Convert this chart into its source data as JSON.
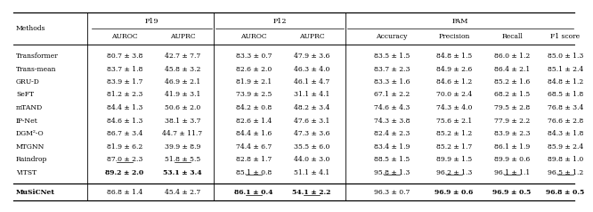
{
  "columns_sub": [
    "Methods",
    "AUROC",
    "AUPRC",
    "AUROC",
    "AUPRC",
    "Accuracy",
    "Precision",
    "Recall",
    "F1 score"
  ],
  "rows": [
    [
      "Transformer",
      "80.7 ± 3.8",
      "42.7 ± 7.7",
      "83.3 ± 0.7",
      "47.9 ± 3.6",
      "83.5 ± 1.5",
      "84.8 ± 1.5",
      "86.0 ± 1.2",
      "85.0 ± 1.3"
    ],
    [
      "Trans-mean",
      "83.7 ± 1.8",
      "45.8 ± 3.2",
      "82.6 ± 2.0",
      "46.3 ± 4.0",
      "83.7 ± 2.3",
      "84.9 ± 2.6",
      "86.4 ± 2.1",
      "85.1 ± 2.4"
    ],
    [
      "GRU-D",
      "83.9 ± 1.7",
      "46.9 ± 2.1",
      "81.9 ± 2.1",
      "46.1 ± 4.7",
      "83.3 ± 1.6",
      "84.6 ± 1.2",
      "85.2 ± 1.6",
      "84.8 ± 1.2"
    ],
    [
      "SeFT",
      "81.2 ± 2.3",
      "41.9 ± 3.1",
      "73.9 ± 2.5",
      "31.1 ± 4.1",
      "67.1 ± 2.2",
      "70.0 ± 2.4",
      "68.2 ± 1.5",
      "68.5 ± 1.8"
    ],
    [
      "mTAND",
      "84.4 ± 1.3",
      "50.6 ± 2.0",
      "84.2 ± 0.8",
      "48.2 ± 3.4",
      "74.6 ± 4.3",
      "74.3 ± 4.0",
      "79.5 ± 2.8",
      "76.8 ± 3.4"
    ],
    [
      "IP-Net",
      "84.6 ± 1.3",
      "38.1 ± 3.7",
      "82.6 ± 1.4",
      "47.6 ± 3.1",
      "74.3 ± 3.8",
      "75.6 ± 2.1",
      "77.9 ± 2.2",
      "76.6 ± 2.8"
    ],
    [
      "DGM²-O",
      "86.7 ± 3.4",
      "44.7 ± 11.7",
      "84.4 ± 1.6",
      "47.3 ± 3.6",
      "82.4 ± 2.3",
      "85.2 ± 1.2",
      "83.9 ± 2.3",
      "84.3 ± 1.8"
    ],
    [
      "MTGNN",
      "81.9 ± 6.2",
      "39.9 ± 8.9",
      "74.4 ± 6.7",
      "35.5 ± 6.0",
      "83.4 ± 1.9",
      "85.2 ± 1.7",
      "86.1 ± 1.9",
      "85.9 ± 2.4"
    ],
    [
      "Raindrop",
      "87.0 ± 2.3",
      "51.8 ± 5.5",
      "82.8 ± 1.7",
      "44.0 ± 3.0",
      "88.5 ± 1.5",
      "89.9 ± 1.5",
      "89.9 ± 0.6",
      "89.8 ± 1.0"
    ],
    [
      "ViTST",
      "89.2 ± 2.0",
      "53.1 ± 3.4",
      "85.1 ± 0.8",
      "51.1 ± 4.1",
      "95.8 ± 1.3",
      "96.2 ± 1.3",
      "96.1 ± 1.1",
      "96.5 ± 1.2"
    ]
  ],
  "last_row": [
    "MuSiCNet",
    "86.8 ± 1.4",
    "45.4 ± 2.7",
    "86.1 ± 0.4",
    "54.1 ± 2.2",
    "96.3 ± 0.7",
    "96.9 ± 0.6",
    "96.9 ± 0.5",
    "96.8 ± 0.5"
  ],
  "bold_last": [
    0,
    3,
    4,
    6,
    7,
    8
  ],
  "bold_rows": {
    "9": [
      1,
      2
    ]
  },
  "underline_last": [
    3,
    4
  ],
  "underline_rows": {
    "8": [
      1,
      2
    ],
    "9": [
      3,
      5,
      6,
      7,
      8
    ]
  },
  "bg_color": "#ffffff",
  "text_color": "#000000"
}
